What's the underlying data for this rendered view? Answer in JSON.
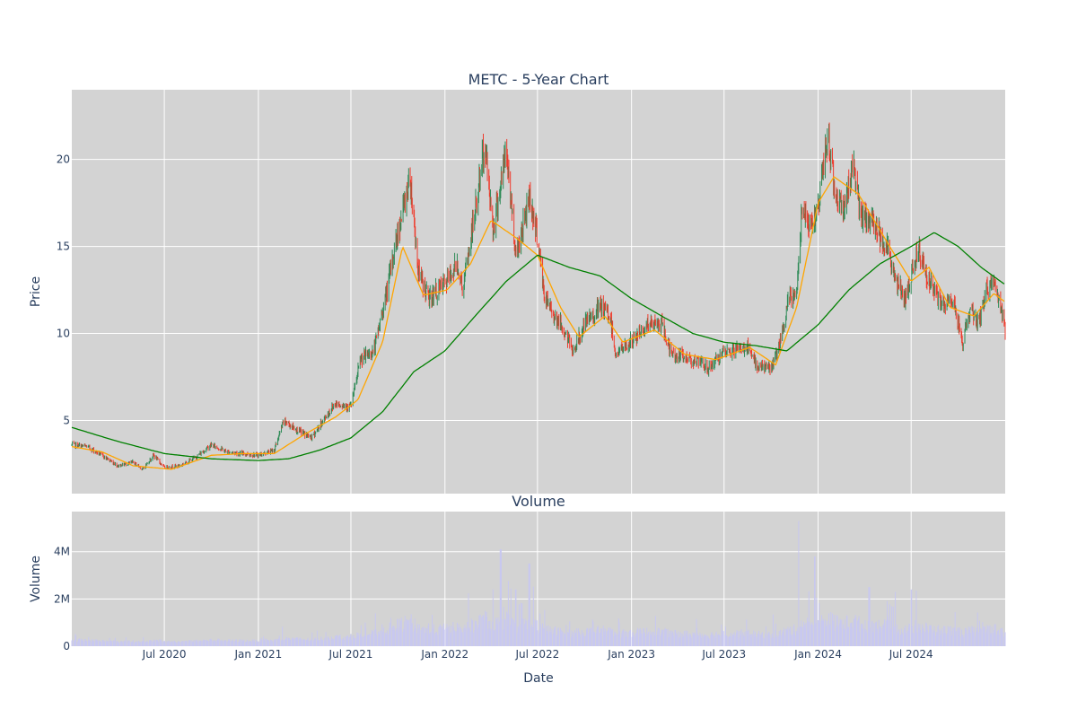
{
  "chart_data": [
    {
      "type": "candlestick",
      "title": "METC - 5-Year Chart",
      "xlabel": "",
      "ylabel": "Price",
      "ylim": [
        0.8,
        24
      ],
      "grid": true,
      "legend": "none",
      "x_ticks": [
        "Jul 2020",
        "Jan 2021",
        "Jul 2021",
        "Jan 2022",
        "Jul 2022",
        "Jan 2023",
        "Jul 2023",
        "Jan 2024",
        "Jul 2024"
      ],
      "y_ticks": [
        5,
        10,
        15,
        20
      ],
      "price_anchors": [
        [
          "2020-01-02",
          3.6
        ],
        [
          "2020-02-01",
          3.5
        ],
        [
          "2020-03-01",
          3.0
        ],
        [
          "2020-04-01",
          2.4
        ],
        [
          "2020-05-01",
          2.6
        ],
        [
          "2020-05-20",
          2.2
        ],
        [
          "2020-06-10",
          3.0
        ],
        [
          "2020-07-01",
          2.3
        ],
        [
          "2020-08-01",
          2.4
        ],
        [
          "2020-09-01",
          2.9
        ],
        [
          "2020-10-01",
          3.6
        ],
        [
          "2020-11-01",
          3.2
        ],
        [
          "2020-12-01",
          3.1
        ],
        [
          "2021-01-01",
          3.0
        ],
        [
          "2021-02-01",
          3.3
        ],
        [
          "2021-02-20",
          5.0
        ],
        [
          "2021-03-15",
          4.5
        ],
        [
          "2021-04-15",
          4.0
        ],
        [
          "2021-05-15",
          5.3
        ],
        [
          "2021-06-01",
          6.0
        ],
        [
          "2021-07-01",
          5.8
        ],
        [
          "2021-07-20",
          8.5
        ],
        [
          "2021-08-15",
          9.0
        ],
        [
          "2021-09-10",
          12.5
        ],
        [
          "2021-09-25",
          15.0
        ],
        [
          "2021-10-10",
          17.0
        ],
        [
          "2021-10-25",
          19.0
        ],
        [
          "2021-11-10",
          13.5
        ],
        [
          "2021-12-01",
          12.0
        ],
        [
          "2021-12-20",
          12.5
        ],
        [
          "2022-01-05",
          13.0
        ],
        [
          "2022-01-25",
          14.0
        ],
        [
          "2022-02-05",
          12.5
        ],
        [
          "2022-03-01",
          17.0
        ],
        [
          "2022-03-20",
          21.0
        ],
        [
          "2022-04-05",
          16.0
        ],
        [
          "2022-05-01",
          20.5
        ],
        [
          "2022-05-20",
          14.5
        ],
        [
          "2022-06-05",
          16.5
        ],
        [
          "2022-06-15",
          18.0
        ],
        [
          "2022-07-01",
          15.5
        ],
        [
          "2022-07-15",
          12.0
        ],
        [
          "2022-08-15",
          10.5
        ],
        [
          "2022-09-10",
          9.0
        ],
        [
          "2022-10-01",
          10.5
        ],
        [
          "2022-11-01",
          11.5
        ],
        [
          "2022-11-20",
          11.0
        ],
        [
          "2022-12-01",
          8.8
        ],
        [
          "2023-01-01",
          9.5
        ],
        [
          "2023-02-01",
          10.5
        ],
        [
          "2023-03-01",
          10.5
        ],
        [
          "2023-03-20",
          8.8
        ],
        [
          "2023-05-01",
          8.5
        ],
        [
          "2023-06-01",
          8.0
        ],
        [
          "2023-06-20",
          8.6
        ],
        [
          "2023-07-15",
          9.0
        ],
        [
          "2023-08-15",
          9.2
        ],
        [
          "2023-09-01",
          8.2
        ],
        [
          "2023-10-01",
          8.0
        ],
        [
          "2023-10-20",
          9.5
        ],
        [
          "2023-11-05",
          12.0
        ],
        [
          "2023-11-20",
          12.3
        ],
        [
          "2023-12-01",
          17.5
        ],
        [
          "2023-12-20",
          16.0
        ],
        [
          "2024-01-05",
          18.0
        ],
        [
          "2024-01-20",
          21.5
        ],
        [
          "2024-02-01",
          18.5
        ],
        [
          "2024-02-20",
          17.0
        ],
        [
          "2024-03-10",
          20.0
        ],
        [
          "2024-03-25",
          16.5
        ],
        [
          "2024-04-15",
          16.5
        ],
        [
          "2024-05-15",
          15.0
        ],
        [
          "2024-06-01",
          13.0
        ],
        [
          "2024-06-20",
          12.0
        ],
        [
          "2024-07-15",
          15.0
        ],
        [
          "2024-08-05",
          13.0
        ],
        [
          "2024-09-01",
          11.5
        ],
        [
          "2024-09-20",
          12.0
        ],
        [
          "2024-10-10",
          9.5
        ],
        [
          "2024-10-25",
          11.5
        ],
        [
          "2024-11-10",
          10.5
        ],
        [
          "2024-11-25",
          12.5
        ],
        [
          "2024-12-10",
          13.0
        ],
        [
          "2025-01-01",
          10.2
        ]
      ],
      "series": [
        {
          "name": "",
          "color": "#ffa500",
          "points": [
            [
              "2020-01-02",
              3.5
            ],
            [
              "2020-03-01",
              3.2
            ],
            [
              "2020-05-01",
              2.4
            ],
            [
              "2020-07-15",
              2.2
            ],
            [
              "2020-10-01",
              3.0
            ],
            [
              "2020-12-01",
              3.1
            ],
            [
              "2021-02-01",
              3.1
            ],
            [
              "2021-04-01",
              4.2
            ],
            [
              "2021-06-01",
              5.2
            ],
            [
              "2021-07-15",
              6.2
            ],
            [
              "2021-09-01",
              9.5
            ],
            [
              "2021-10-10",
              15.0
            ],
            [
              "2021-11-20",
              12.2
            ],
            [
              "2022-01-05",
              12.5
            ],
            [
              "2022-02-20",
              14.0
            ],
            [
              "2022-04-01",
              16.5
            ],
            [
              "2022-05-20",
              15.5
            ],
            [
              "2022-07-01",
              14.5
            ],
            [
              "2022-08-15",
              11.5
            ],
            [
              "2022-09-20",
              9.8
            ],
            [
              "2022-11-10",
              11.0
            ],
            [
              "2022-12-15",
              9.5
            ],
            [
              "2023-02-15",
              10.2
            ],
            [
              "2023-04-15",
              8.8
            ],
            [
              "2023-06-15",
              8.5
            ],
            [
              "2023-08-20",
              9.2
            ],
            [
              "2023-10-10",
              8.2
            ],
            [
              "2023-11-20",
              11.5
            ],
            [
              "2024-01-01",
              17.5
            ],
            [
              "2024-02-01",
              19.0
            ],
            [
              "2024-03-20",
              18.0
            ],
            [
              "2024-05-20",
              15.0
            ],
            [
              "2024-07-01",
              13.0
            ],
            [
              "2024-08-05",
              13.8
            ],
            [
              "2024-09-15",
              11.5
            ],
            [
              "2024-11-01",
              11.0
            ],
            [
              "2024-12-10",
              12.3
            ],
            [
              "2025-01-01",
              11.8
            ]
          ]
        },
        {
          "name": "",
          "color": "#008000",
          "points": [
            [
              "2020-01-02",
              4.6
            ],
            [
              "2020-04-01",
              3.8
            ],
            [
              "2020-07-01",
              3.1
            ],
            [
              "2020-10-01",
              2.8
            ],
            [
              "2021-01-01",
              2.7
            ],
            [
              "2021-03-01",
              2.8
            ],
            [
              "2021-05-01",
              3.3
            ],
            [
              "2021-07-01",
              4.0
            ],
            [
              "2021-09-01",
              5.5
            ],
            [
              "2021-11-01",
              7.8
            ],
            [
              "2022-01-01",
              9.0
            ],
            [
              "2022-03-01",
              11.0
            ],
            [
              "2022-05-01",
              13.0
            ],
            [
              "2022-07-01",
              14.5
            ],
            [
              "2022-09-01",
              13.8
            ],
            [
              "2022-11-01",
              13.3
            ],
            [
              "2023-01-01",
              12.0
            ],
            [
              "2023-03-01",
              11.0
            ],
            [
              "2023-05-01",
              10.0
            ],
            [
              "2023-07-01",
              9.5
            ],
            [
              "2023-09-01",
              9.3
            ],
            [
              "2023-11-01",
              9.0
            ],
            [
              "2024-01-01",
              10.5
            ],
            [
              "2024-03-01",
              12.5
            ],
            [
              "2024-05-01",
              14.0
            ],
            [
              "2024-07-01",
              15.0
            ],
            [
              "2024-08-15",
              15.8
            ],
            [
              "2024-10-01",
              15.0
            ],
            [
              "2024-11-15",
              13.8
            ],
            [
              "2025-01-01",
              12.8
            ]
          ]
        }
      ],
      "up_color": "#2e8b57",
      "down_color": "#ef3b2c"
    },
    {
      "type": "bar",
      "title": "Volume",
      "xlabel": "Date",
      "ylabel": "Volume",
      "ylim": [
        0,
        5700000
      ],
      "y_ticks": [
        "0",
        "2M",
        "4M"
      ],
      "bar_color": "#c8c8f0",
      "volume_spikes": [
        [
          "2022-04-20",
          4100000
        ],
        [
          "2022-06-15",
          3500000
        ],
        [
          "2022-05-20",
          2400000
        ],
        [
          "2023-11-25",
          5300000
        ],
        [
          "2023-12-25",
          3800000
        ],
        [
          "2024-04-10",
          2500000
        ],
        [
          "2024-06-01",
          2300000
        ],
        [
          "2024-07-01",
          2400000
        ]
      ]
    }
  ]
}
